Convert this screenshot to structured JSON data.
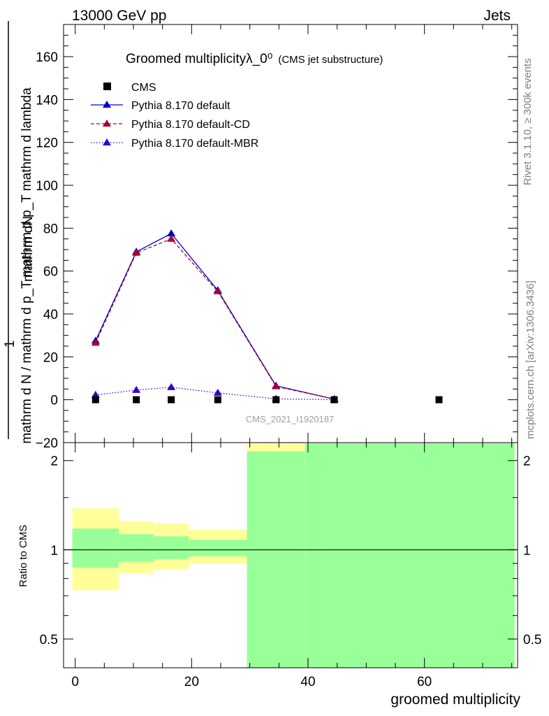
{
  "header": {
    "left": "13000 GeV pp",
    "right": "Jets"
  },
  "side_labels": {
    "rivet": "Rivet 3.1.10, ≥ 300k events",
    "mcplots": "mcplots.cern.ch [arXiv:1306.3436]"
  },
  "watermark": "CMS_2021_I1920187",
  "chart_data": {
    "type": "line",
    "title": "Groomed multiplicityλ_0⁰",
    "subtitle": "(CMS jet substructure)",
    "xlabel": "groomed multiplicity",
    "ylabel": {
      "numerator_prefix": "1",
      "numerator_suffix": "mathrm dN",
      "line1": "mathrm d N / mathrm d p",
      "sub1": "T",
      "line1b": "mathrm d p",
      "sub2": "T",
      "line1c": "mathrm d lambda"
    },
    "ylabel_display": {
      "top": "mathrm dN",
      "bottom": "mathrm d N / mathrm d p_T mathrm d p_T mathrm d lambda",
      "pre": "1"
    },
    "ratio_ylabel": "Ratio to CMS",
    "xlim": [
      -2,
      76
    ],
    "ylim": [
      -20,
      175
    ],
    "ratio_ylim": [
      0.4,
      2.3
    ],
    "x_ticks": [
      "0",
      "20",
      "40",
      "60"
    ],
    "x_tick_values": [
      0,
      20,
      40,
      60
    ],
    "y_ticks": [
      "−20",
      "0",
      "20",
      "40",
      "60",
      "80",
      "100",
      "120",
      "140",
      "160"
    ],
    "y_tick_values": [
      -20,
      0,
      20,
      40,
      60,
      80,
      100,
      120,
      140,
      160
    ],
    "ratio_ticks": [
      "0.5",
      "1",
      "2"
    ],
    "ratio_tick_values": [
      0.5,
      1,
      2
    ],
    "legend_position": "top-left",
    "cms": {
      "name": "CMS",
      "x": [
        3.5,
        10.5,
        16.5,
        24.5,
        34.5,
        44.5,
        62.5
      ],
      "y": [
        0,
        0,
        0,
        0,
        0,
        0,
        0
      ]
    },
    "series": [
      {
        "name": "Pythia 8.170 default",
        "color": "#0000cc",
        "style": "solid",
        "x": [
          3.5,
          10.5,
          16.5,
          24.5,
          34.5,
          44.5
        ],
        "y": [
          27.5,
          69.0,
          77.5,
          51.0,
          6.5,
          0.3
        ],
        "err": [
          1.0,
          1.5,
          1.5,
          1.0,
          0.5,
          0.1
        ]
      },
      {
        "name": "Pythia 8.170 default-CD",
        "color": "#aa0033",
        "style": "dashed",
        "x": [
          3.5,
          10.5,
          16.5,
          24.5,
          34.5,
          44.5
        ],
        "y": [
          26.5,
          68.5,
          75.0,
          50.5,
          6.2,
          0.3
        ],
        "err": [
          1.0,
          1.5,
          1.5,
          1.0,
          0.5,
          0.1
        ]
      },
      {
        "name": "Pythia 8.170 default-MBR",
        "color": "#3300cc",
        "style": "dotted",
        "x": [
          3.5,
          10.5,
          16.5,
          24.5,
          34.5,
          44.5
        ],
        "y": [
          2.2,
          4.5,
          5.8,
          3.2,
          0.4,
          0.0
        ],
        "err": [
          0.3,
          0.4,
          0.4,
          0.3,
          0.1,
          0.0
        ]
      }
    ],
    "ratio_bands": [
      {
        "xlo": -0.5,
        "xhi": 7.5,
        "yellow": [
          0.73,
          1.38
        ],
        "green": [
          0.87,
          1.18
        ]
      },
      {
        "xlo": 7.5,
        "xhi": 13.5,
        "yellow": [
          0.83,
          1.25
        ],
        "green": [
          0.91,
          1.13
        ]
      },
      {
        "xlo": 13.5,
        "xhi": 19.5,
        "yellow": [
          0.86,
          1.23
        ],
        "green": [
          0.93,
          1.11
        ]
      },
      {
        "xlo": 19.5,
        "xhi": 29.5,
        "yellow": [
          0.9,
          1.17
        ],
        "green": [
          0.95,
          1.08
        ]
      },
      {
        "xlo": 29.5,
        "xhi": 39.5,
        "yellow": [
          0.4,
          2.3
        ],
        "green": [
          0.4,
          2.15
        ]
      },
      {
        "xlo": 39.5,
        "xhi": 75.5,
        "yellow": [
          0.4,
          2.3
        ],
        "green": [
          0.4,
          2.3
        ]
      }
    ]
  }
}
